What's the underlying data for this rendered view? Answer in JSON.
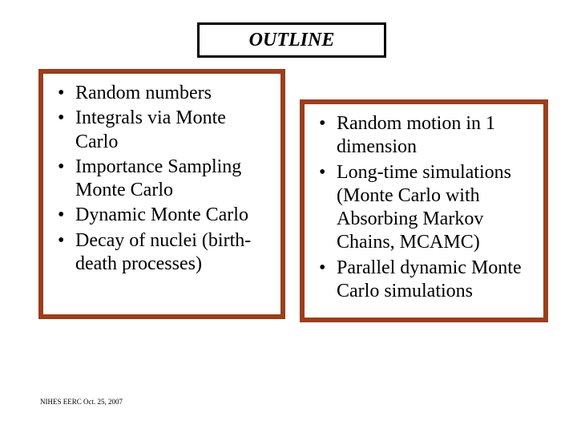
{
  "title": "OUTLINE",
  "left_items": [
    "Random numbers",
    "Integrals via Monte Carlo",
    "Importance Sampling Monte Carlo",
    "Dynamic Monte Carlo",
    "Decay of nuclei (birth-death processes)"
  ],
  "right_items": [
    "Random motion in 1 dimension",
    "Long-time simulations (Monte Carlo with Absorbing Markov Chains, MCAMC)",
    "Parallel dynamic Monte Carlo simulations"
  ],
  "footer": "NIHES EERC Oct. 25, 2007",
  "colors": {
    "box_border": "#9a3f1c",
    "title_border": "#000000",
    "text": "#000000",
    "background": "#ffffff"
  },
  "typography": {
    "title_fontsize": 24,
    "title_style": "bold italic",
    "body_fontsize": 24,
    "footer_fontsize": 9,
    "font_family": "Times New Roman"
  },
  "layout": {
    "slide_width": 720,
    "slide_height": 540,
    "left_box_border_width": 6,
    "right_box_border_width": 6,
    "title_box_border_width": 3
  }
}
